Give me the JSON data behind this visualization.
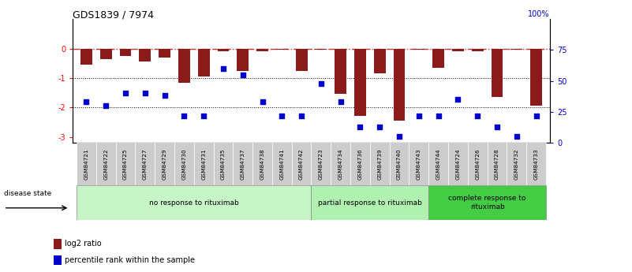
{
  "title": "GDS1839 / 7974",
  "samples": [
    "GSM84721",
    "GSM84722",
    "GSM84725",
    "GSM84727",
    "GSM84729",
    "GSM84730",
    "GSM84731",
    "GSM84735",
    "GSM84737",
    "GSM84738",
    "GSM84741",
    "GSM84742",
    "GSM84723",
    "GSM84734",
    "GSM84736",
    "GSM84739",
    "GSM84740",
    "GSM84743",
    "GSM84744",
    "GSM84724",
    "GSM84726",
    "GSM84728",
    "GSM84732",
    "GSM84733"
  ],
  "log2_ratio": [
    -0.55,
    -0.35,
    -0.25,
    -0.45,
    -0.3,
    -1.15,
    -0.95,
    -0.08,
    -0.75,
    -0.1,
    -0.05,
    -0.75,
    -0.05,
    -1.55,
    -2.3,
    -0.85,
    -2.45,
    -0.05,
    -0.65,
    -0.08,
    -0.08,
    -1.65,
    -0.05,
    -1.95
  ],
  "percentile_rank": [
    33,
    30,
    40,
    40,
    38,
    22,
    22,
    60,
    55,
    33,
    22,
    22,
    48,
    33,
    13,
    13,
    5,
    22,
    22,
    35,
    22,
    13,
    5,
    22
  ],
  "group_labels": [
    "no response to rituximab",
    "partial response to rituximab",
    "complete response to\nrituximab"
  ],
  "group_ranges": [
    0,
    12,
    18,
    24
  ],
  "group_colors": [
    "#c8f5c8",
    "#b0f0b0",
    "#44cc44"
  ],
  "bar_color": "#8B1A1A",
  "dot_color": "#0000CD",
  "dashed_line_color": "#CC3333",
  "ylim_left": [
    -3.2,
    1.0
  ],
  "ylim_right": [
    0,
    100
  ],
  "legend_log2": "log2 ratio",
  "legend_pct": "percentile rank within the sample",
  "disease_state_label": "disease state"
}
